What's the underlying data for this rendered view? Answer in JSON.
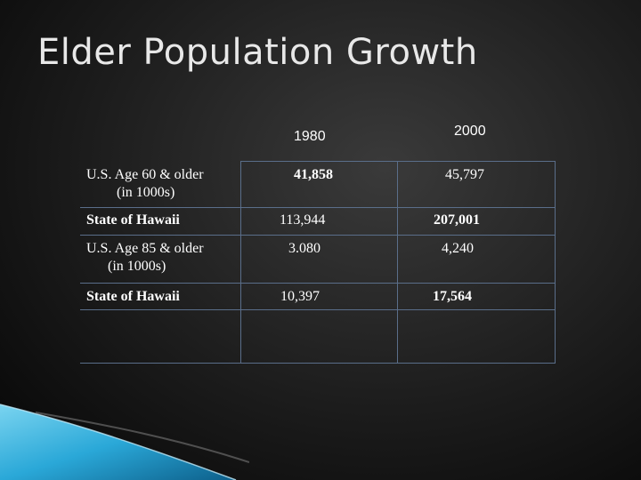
{
  "slide": {
    "title": "Elder Population Growth"
  },
  "table": {
    "col_headers": [
      "1980",
      "2000"
    ],
    "rows": [
      {
        "label_line1": "U.S. Age 60 & older",
        "label_line2": "(in 1000s)",
        "v1980": "41,858",
        "v2000": "45,797"
      },
      {
        "label_line1": "State of Hawaii",
        "label_line2": "",
        "v1980": "113,944",
        "v2000": "207,001"
      },
      {
        "label_line1": "U.S. Age 85 & older",
        "label_line2": "(in 1000s)",
        "v1980": "3.080",
        "v2000": "4,240"
      },
      {
        "label_line1": "State of  Hawaii",
        "label_line2": "",
        "v1980": "10,397",
        "v2000": "17,564"
      }
    ]
  },
  "colors": {
    "grid_line": "#5a6e8a",
    "accent_blue": "#2aa8d8"
  }
}
